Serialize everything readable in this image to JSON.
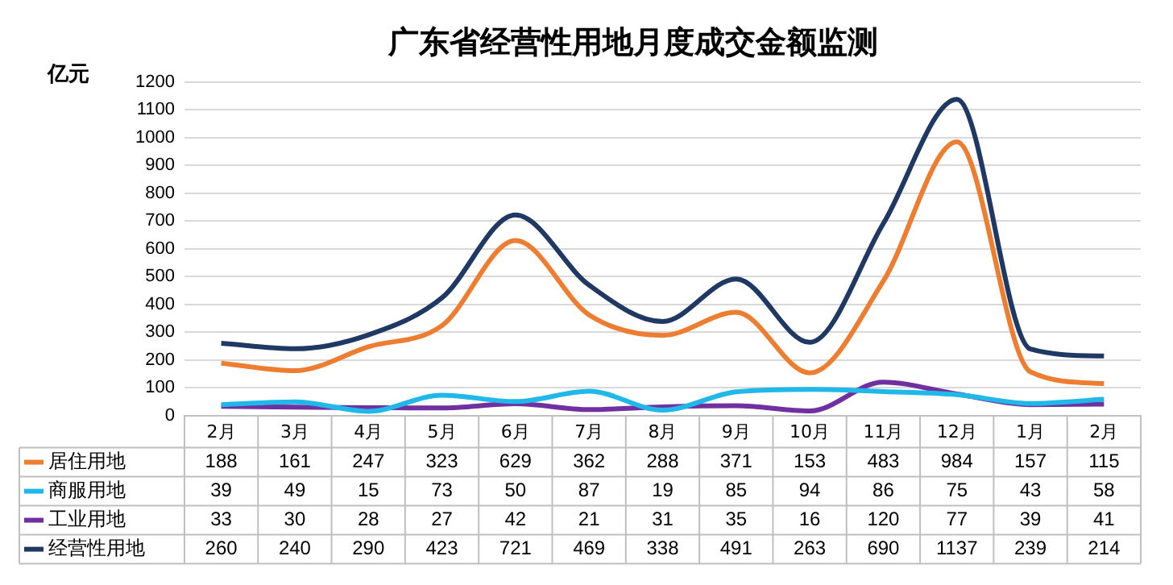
{
  "chart_data": {
    "type": "line",
    "title": "广东省经营性用地月度成交金额监测",
    "ylabel": "亿元",
    "categories": [
      "2月",
      "3月",
      "4月",
      "5月",
      "6月",
      "7月",
      "8月",
      "9月",
      "10月",
      "11月",
      "12月",
      "1月",
      "2月"
    ],
    "series": [
      {
        "name": "居住用地",
        "color": "#ed7d31",
        "values": [
          188,
          161,
          247,
          323,
          629,
          362,
          288,
          371,
          153,
          483,
          984,
          157,
          115
        ]
      },
      {
        "name": "商服用地",
        "color": "#1fb8e8",
        "values": [
          39,
          49,
          15,
          73,
          50,
          87,
          19,
          85,
          94,
          86,
          75,
          43,
          58
        ]
      },
      {
        "name": "工业用地",
        "color": "#7030a0",
        "values": [
          33,
          30,
          28,
          27,
          42,
          21,
          31,
          35,
          16,
          120,
          77,
          39,
          41
        ]
      },
      {
        "name": "经营性用地",
        "color": "#1f3864",
        "values": [
          260,
          240,
          290,
          423,
          721,
          469,
          338,
          491,
          263,
          690,
          1137,
          239,
          214
        ]
      }
    ],
    "ylim": [
      0,
      1200
    ],
    "yticks": [
      0,
      100,
      200,
      300,
      400,
      500,
      600,
      700,
      800,
      900,
      1000,
      1100,
      1200
    ],
    "grid": "y",
    "legend": "bottom",
    "data_labels": true,
    "marker": "none",
    "line_style": "solid"
  }
}
